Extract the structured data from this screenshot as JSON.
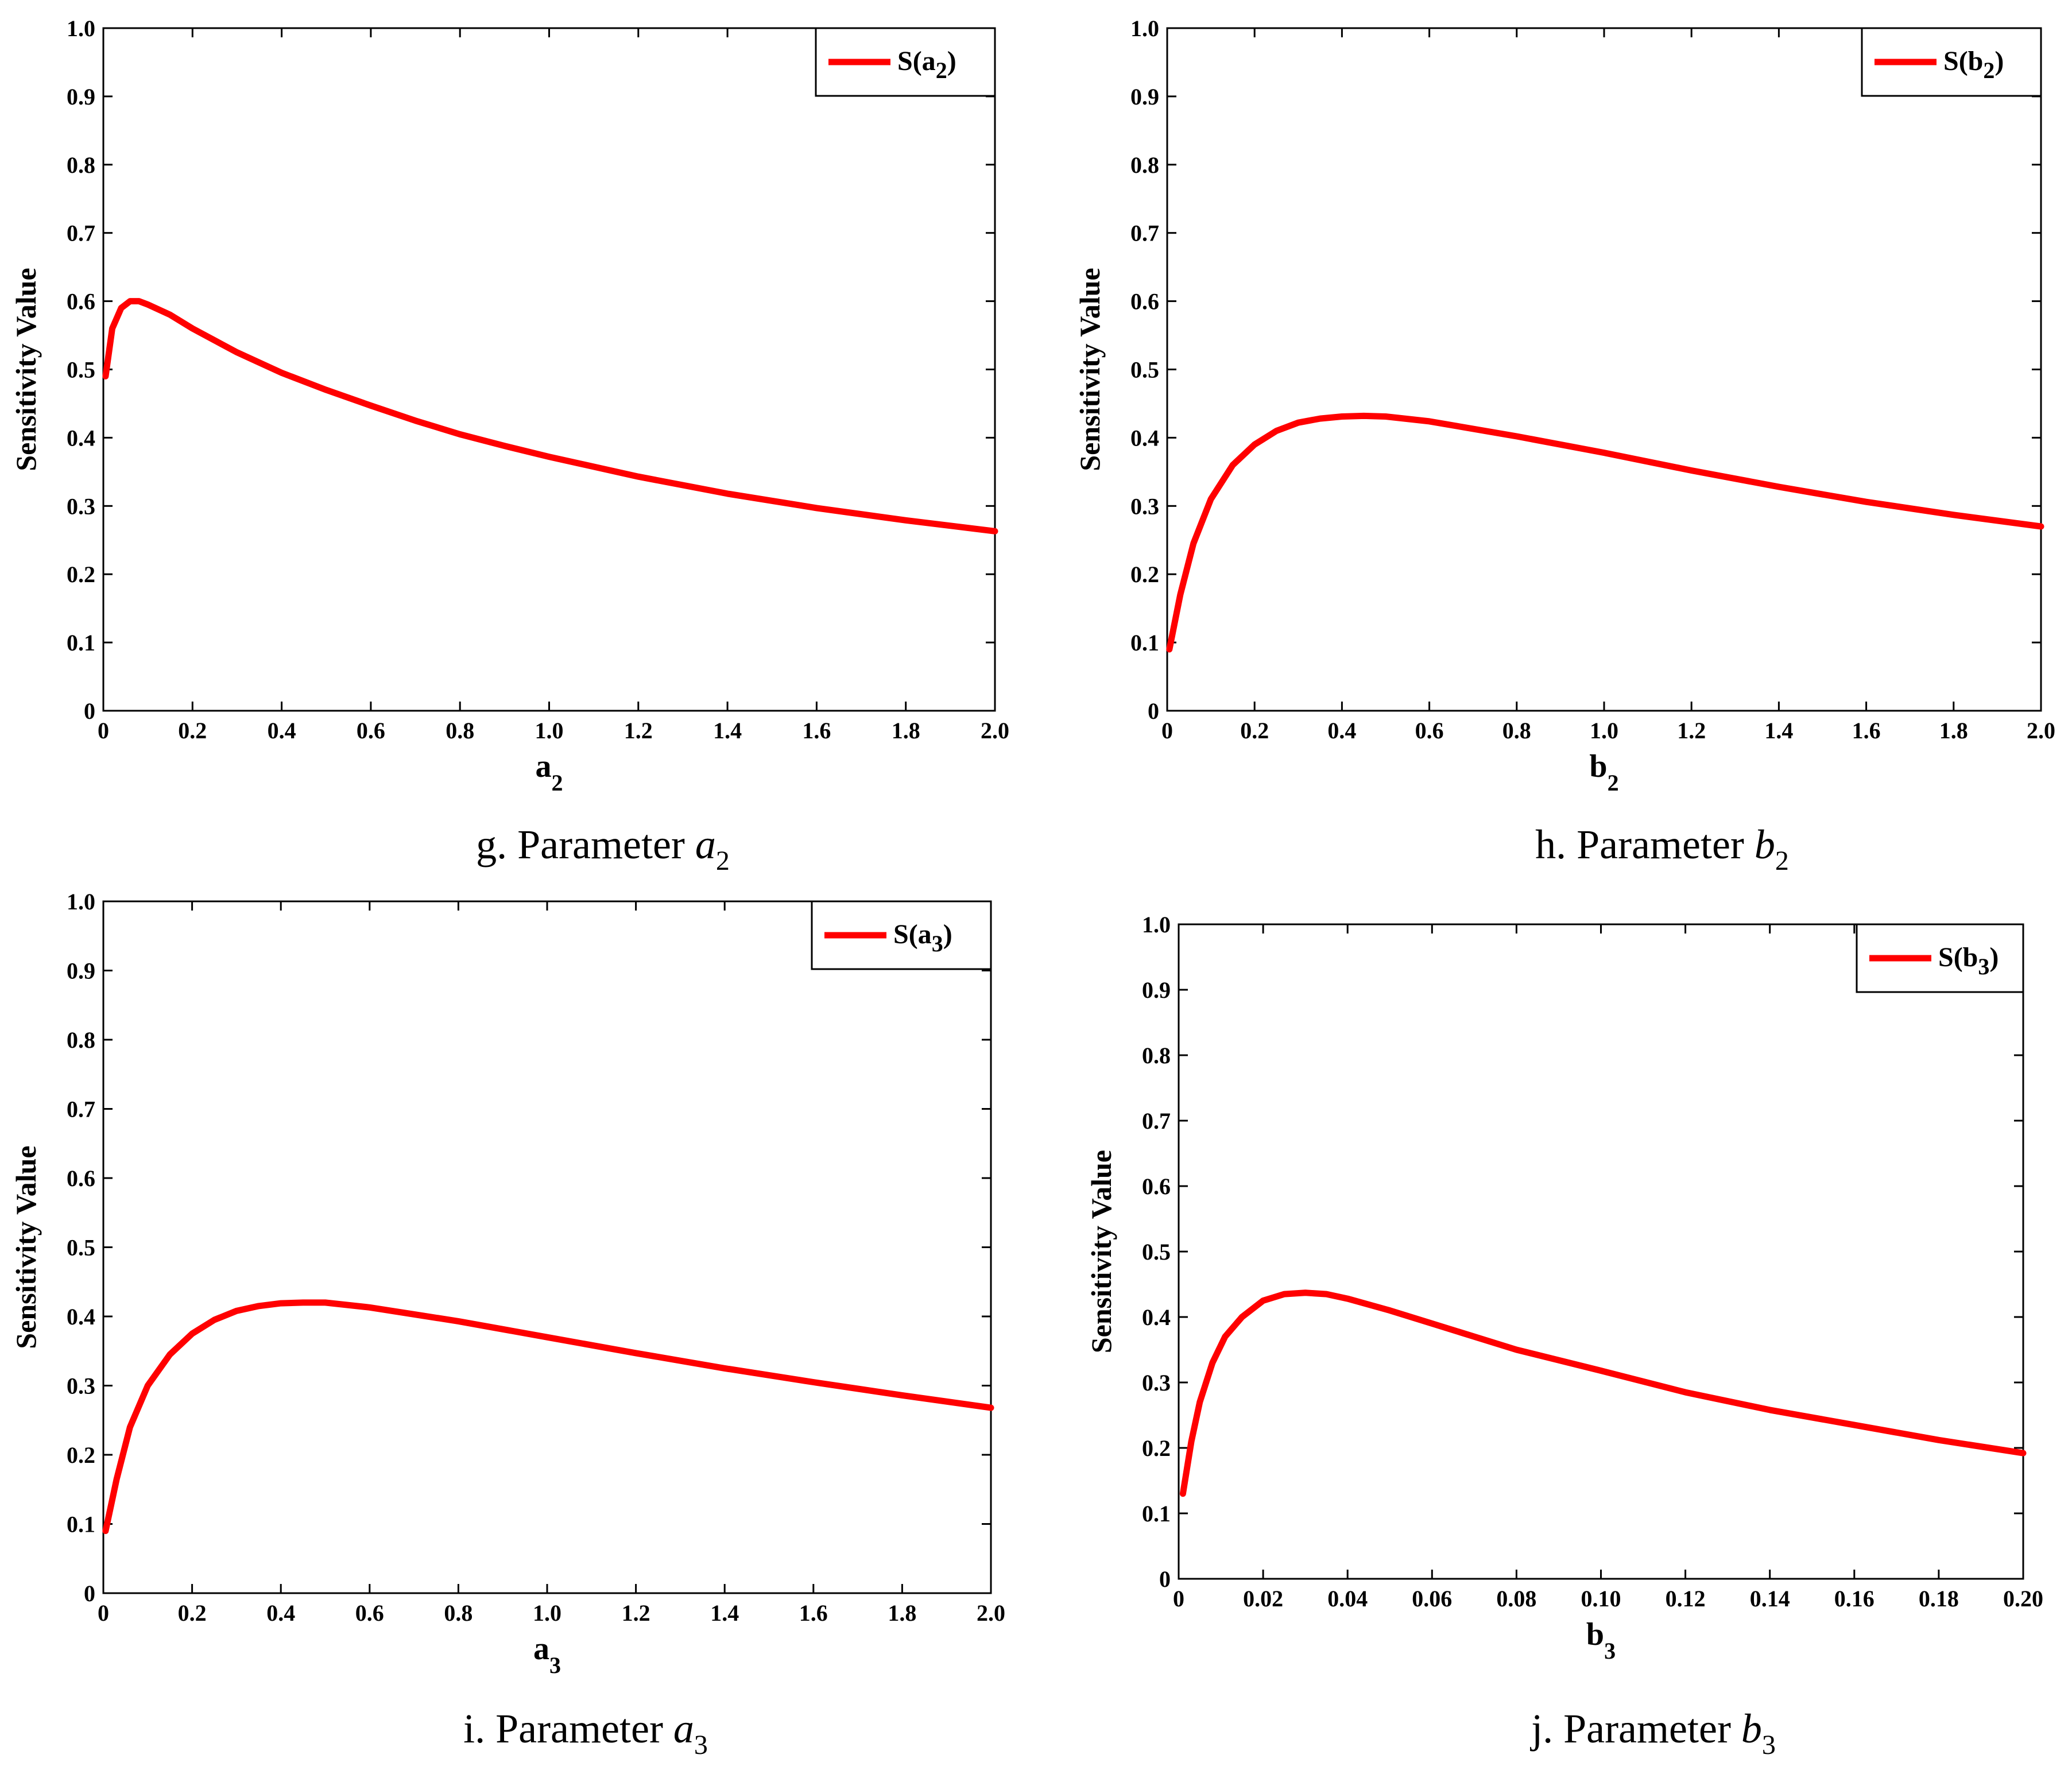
{
  "chart_data": [
    {
      "type": "line",
      "title": "",
      "caption": "g. Parameter",
      "caption_symbol": "a",
      "caption_subscript": "2",
      "xlabel": "a",
      "xlabel_sub": "2",
      "ylabel": "Sensitivity Value",
      "legend": {
        "prefix": "S(a",
        "sub": "2",
        "suffix": ")",
        "position": "top-right"
      },
      "xlim": [
        0,
        2.0
      ],
      "ylim": [
        0,
        1.0
      ],
      "xticks": [
        "0",
        "0.2",
        "0.4",
        "0.6",
        "0.8",
        "1.0",
        "1.2",
        "1.4",
        "1.6",
        "1.8",
        "2.0"
      ],
      "yticks": [
        "0",
        "0.1",
        "0.2",
        "0.3",
        "0.4",
        "0.5",
        "0.6",
        "0.7",
        "0.8",
        "0.9",
        "1.0"
      ],
      "color": "#ff0000",
      "series": [
        {
          "name": "S(a2)",
          "x": [
            0.005,
            0.02,
            0.04,
            0.06,
            0.08,
            0.1,
            0.15,
            0.2,
            0.3,
            0.4,
            0.5,
            0.6,
            0.7,
            0.8,
            0.9,
            1.0,
            1.2,
            1.4,
            1.6,
            1.8,
            2.0
          ],
          "y": [
            0.49,
            0.56,
            0.59,
            0.6,
            0.6,
            0.595,
            0.58,
            0.56,
            0.525,
            0.495,
            0.47,
            0.447,
            0.425,
            0.405,
            0.388,
            0.372,
            0.343,
            0.318,
            0.297,
            0.279,
            0.263
          ]
        }
      ]
    },
    {
      "type": "line",
      "title": "",
      "caption": "h. Parameter",
      "caption_symbol": "b",
      "caption_subscript": "2",
      "xlabel": "b",
      "xlabel_sub": "2",
      "ylabel": "Sensitivity Value",
      "legend": {
        "prefix": "S(b",
        "sub": "2",
        "suffix": ")",
        "position": "top-right"
      },
      "xlim": [
        0,
        2.0
      ],
      "ylim": [
        0,
        1.0
      ],
      "xticks": [
        "0",
        "0.2",
        "0.4",
        "0.6",
        "0.8",
        "1.0",
        "1.2",
        "1.4",
        "1.6",
        "1.8",
        "2.0"
      ],
      "yticks": [
        "0",
        "0.1",
        "0.2",
        "0.3",
        "0.4",
        "0.5",
        "0.6",
        "0.7",
        "0.8",
        "0.9",
        "1.0"
      ],
      "color": "#ff0000",
      "series": [
        {
          "name": "S(b2)",
          "x": [
            0.005,
            0.03,
            0.06,
            0.1,
            0.15,
            0.2,
            0.25,
            0.3,
            0.35,
            0.4,
            0.45,
            0.5,
            0.6,
            0.8,
            1.0,
            1.2,
            1.4,
            1.6,
            1.8,
            2.0
          ],
          "y": [
            0.09,
            0.17,
            0.245,
            0.31,
            0.36,
            0.39,
            0.41,
            0.422,
            0.428,
            0.431,
            0.432,
            0.431,
            0.424,
            0.402,
            0.378,
            0.352,
            0.328,
            0.306,
            0.287,
            0.27
          ]
        }
      ]
    },
    {
      "type": "line",
      "title": "",
      "caption": "i. Parameter",
      "caption_symbol": "a",
      "caption_subscript": "3",
      "xlabel": "a",
      "xlabel_sub": "3",
      "ylabel": "Sensitivity Value",
      "legend": {
        "prefix": "S(a",
        "sub": "3",
        "suffix": ")",
        "position": "top-right"
      },
      "xlim": [
        0,
        2.0
      ],
      "ylim": [
        0,
        1.0
      ],
      "xticks": [
        "0",
        "0.2",
        "0.4",
        "0.6",
        "0.8",
        "1.0",
        "1.2",
        "1.4",
        "1.6",
        "1.8",
        "2.0"
      ],
      "yticks": [
        "0",
        "0.1",
        "0.2",
        "0.3",
        "0.4",
        "0.5",
        "0.6",
        "0.7",
        "0.8",
        "0.9",
        "1.0"
      ],
      "color": "#ff0000",
      "series": [
        {
          "name": "S(a3)",
          "x": [
            0.005,
            0.03,
            0.06,
            0.1,
            0.15,
            0.2,
            0.25,
            0.3,
            0.35,
            0.4,
            0.45,
            0.5,
            0.6,
            0.8,
            1.0,
            1.2,
            1.4,
            1.6,
            1.8,
            2.0
          ],
          "y": [
            0.09,
            0.165,
            0.24,
            0.3,
            0.345,
            0.375,
            0.395,
            0.408,
            0.415,
            0.419,
            0.42,
            0.42,
            0.413,
            0.393,
            0.37,
            0.347,
            0.325,
            0.305,
            0.286,
            0.268
          ]
        }
      ]
    },
    {
      "type": "line",
      "title": "",
      "caption": "j. Parameter",
      "caption_symbol": "b",
      "caption_subscript": "3",
      "xlabel": "b",
      "xlabel_sub": "3",
      "ylabel": "Sensitivity Value",
      "legend": {
        "prefix": "S(b",
        "sub": "3",
        "suffix": ")",
        "position": "top-right"
      },
      "xlim": [
        0,
        0.2
      ],
      "ylim": [
        0,
        1.0
      ],
      "xticks": [
        "0",
        "0.02",
        "0.04",
        "0.06",
        "0.08",
        "0.10",
        "0.12",
        "0.14",
        "0.16",
        "0.18",
        "0.20"
      ],
      "yticks": [
        "0",
        "0.1",
        "0.2",
        "0.3",
        "0.4",
        "0.5",
        "0.6",
        "0.7",
        "0.8",
        "0.9",
        "1.0"
      ],
      "color": "#ff0000",
      "series": [
        {
          "name": "S(b3)",
          "x": [
            0.001,
            0.003,
            0.005,
            0.008,
            0.011,
            0.015,
            0.02,
            0.025,
            0.03,
            0.035,
            0.04,
            0.05,
            0.06,
            0.08,
            0.1,
            0.12,
            0.14,
            0.16,
            0.18,
            0.2
          ],
          "y": [
            0.13,
            0.21,
            0.27,
            0.33,
            0.37,
            0.4,
            0.425,
            0.435,
            0.437,
            0.435,
            0.428,
            0.41,
            0.39,
            0.35,
            0.318,
            0.285,
            0.258,
            0.235,
            0.212,
            0.192
          ]
        }
      ]
    }
  ]
}
